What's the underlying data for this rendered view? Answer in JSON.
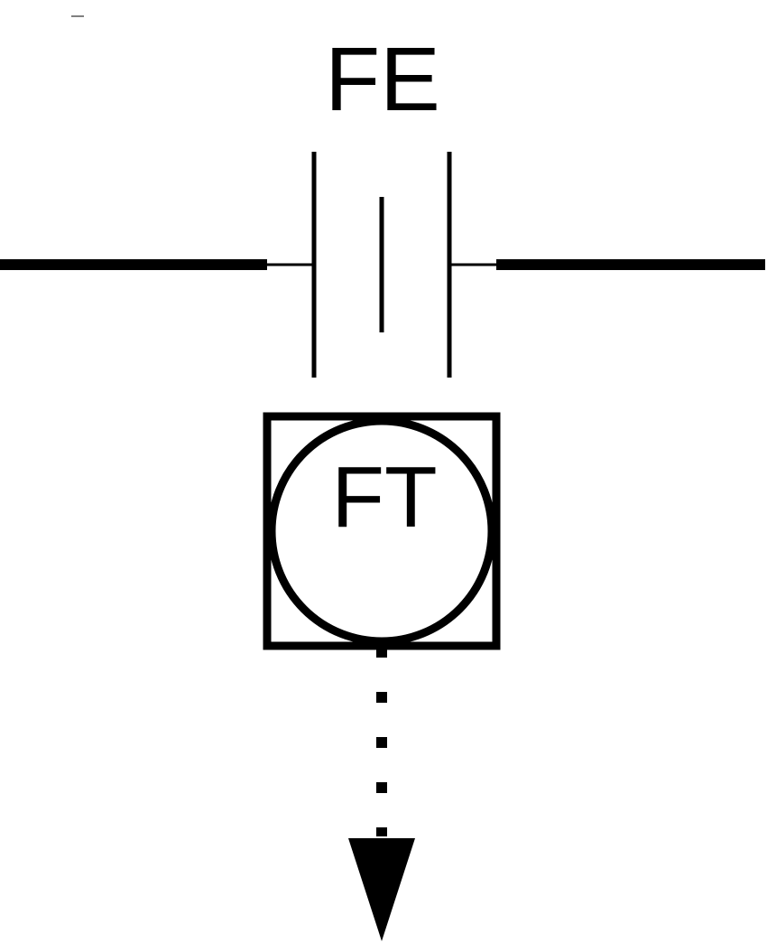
{
  "element_label": "FE",
  "transmitter_label": "FT",
  "colors": {
    "line": "#000000",
    "background": "#ffffff"
  }
}
